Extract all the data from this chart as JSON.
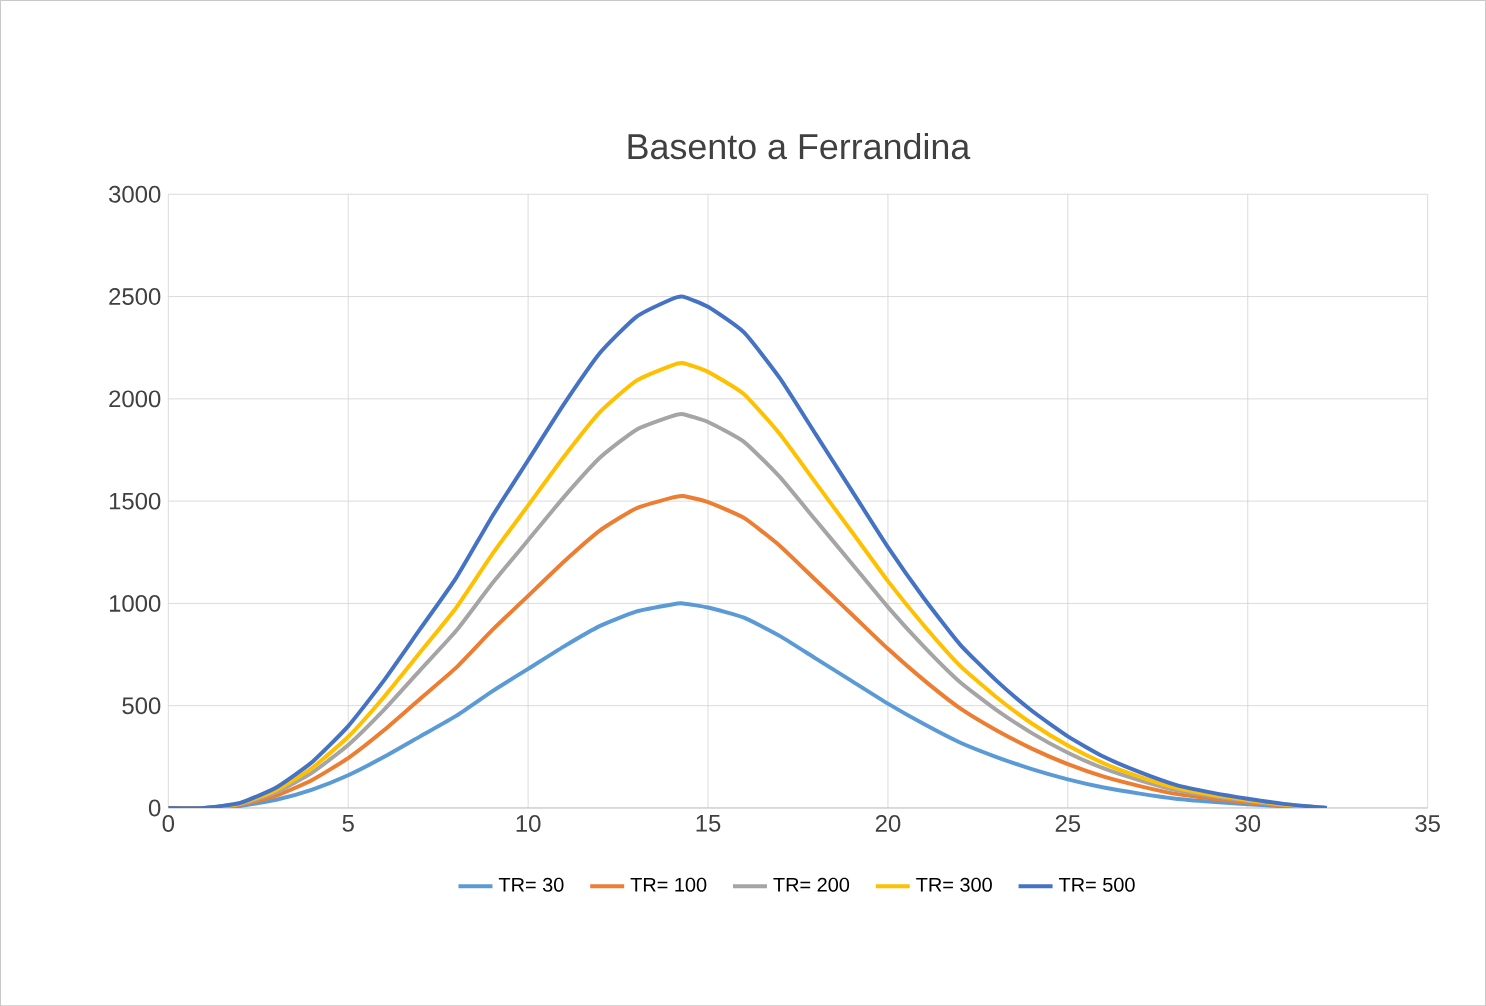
{
  "chart_data": {
    "type": "line",
    "title": "Basento a Ferrandina",
    "x": [
      0,
      1,
      2,
      3,
      4,
      5,
      6,
      7,
      8,
      9,
      10,
      11,
      12,
      13,
      14,
      14.3,
      15,
      16,
      17,
      18,
      19,
      20,
      21,
      22,
      23,
      24,
      25,
      26,
      27,
      28,
      29,
      30,
      31,
      32.2
    ],
    "series": [
      {
        "name": "TR= 30",
        "color": "#5b9bd5",
        "values": [
          0,
          0,
          10,
          40,
          90,
          160,
          250,
          350,
          450,
          570,
          680,
          790,
          890,
          960,
          995,
          1000,
          980,
          930,
          840,
          730,
          620,
          510,
          410,
          320,
          250,
          190,
          140,
          100,
          70,
          45,
          30,
          18,
          8,
          0
        ]
      },
      {
        "name": "TR= 100",
        "color": "#ed7d31",
        "values": [
          0,
          0,
          15,
          60,
          137,
          244,
          381,
          534,
          686,
          869,
          1037,
          1205,
          1357,
          1464,
          1517,
          1525,
          1495,
          1418,
          1281,
          1113,
          946,
          778,
          625,
          488,
          381,
          290,
          214,
          153,
          107,
          69,
          46,
          27,
          12,
          0
        ]
      },
      {
        "name": "TR= 200",
        "color": "#a5a5a5",
        "values": [
          0,
          0,
          19,
          77,
          173,
          308,
          481,
          674,
          866,
          1097,
          1309,
          1521,
          1713,
          1848,
          1915,
          1925,
          1887,
          1790,
          1617,
          1405,
          1194,
          982,
          789,
          616,
          481,
          366,
          270,
          193,
          135,
          87,
          58,
          35,
          15,
          0
        ]
      },
      {
        "name": "TR= 300",
        "color": "#ffc000",
        "values": [
          0,
          0,
          22,
          87,
          196,
          348,
          544,
          761,
          979,
          1240,
          1479,
          1718,
          1936,
          2088,
          2164,
          2175,
          2132,
          2023,
          1827,
          1588,
          1349,
          1109,
          892,
          696,
          544,
          413,
          305,
          218,
          152,
          98,
          65,
          39,
          17,
          0
        ]
      },
      {
        "name": "TR= 500",
        "color": "#4472c4",
        "values": [
          0,
          0,
          25,
          100,
          225,
          400,
          625,
          875,
          1125,
          1425,
          1700,
          1975,
          2225,
          2400,
          2488,
          2500,
          2450,
          2325,
          2100,
          1825,
          1550,
          1275,
          1025,
          800,
          625,
          475,
          350,
          250,
          175,
          113,
          75,
          45,
          20,
          0
        ]
      }
    ],
    "xlim": [
      0,
      35
    ],
    "xticks": [
      0,
      5,
      10,
      15,
      20,
      25,
      30,
      35
    ],
    "ylim": [
      0,
      3000
    ],
    "yticks": [
      0,
      500,
      1000,
      1500,
      2000,
      2500,
      3000
    ],
    "grid": true,
    "legend": "bottom",
    "marker": "none",
    "line_style": "solid"
  }
}
